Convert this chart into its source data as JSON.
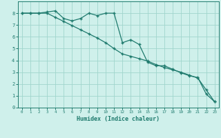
{
  "xlabel": "Humidex (Indice chaleur)",
  "bg_color": "#cff0eb",
  "grid_color": "#a0d5cc",
  "line_color": "#1e7a6d",
  "marker": "+",
  "xlim": [
    -0.5,
    23.5
  ],
  "ylim": [
    0,
    9
  ],
  "xticks": [
    0,
    1,
    2,
    3,
    4,
    5,
    6,
    7,
    8,
    9,
    10,
    11,
    12,
    13,
    14,
    15,
    16,
    17,
    18,
    19,
    20,
    21,
    22,
    23
  ],
  "yticks": [
    0,
    1,
    2,
    3,
    4,
    5,
    6,
    7,
    8
  ],
  "line1_x": [
    0,
    1,
    2,
    3,
    4,
    5,
    6,
    7,
    8,
    9,
    10,
    11,
    12,
    13,
    14,
    15,
    16,
    17,
    18,
    19,
    20,
    21,
    22,
    23
  ],
  "line1_y": [
    8,
    8,
    8,
    8.1,
    8.2,
    7.55,
    7.35,
    7.55,
    8.0,
    7.8,
    8.0,
    8.0,
    5.5,
    5.75,
    5.35,
    3.85,
    3.55,
    3.55,
    3.25,
    2.95,
    2.7,
    2.55,
    1.15,
    0.5
  ],
  "line2_x": [
    0,
    1,
    2,
    3,
    4,
    5,
    6,
    7,
    8,
    9,
    10,
    11,
    12,
    13,
    14,
    15,
    16,
    17,
    18,
    19,
    20,
    21,
    22,
    23
  ],
  "line2_y": [
    8,
    8,
    8,
    8.0,
    7.65,
    7.3,
    6.95,
    6.6,
    6.25,
    5.9,
    5.5,
    5.0,
    4.55,
    4.35,
    4.15,
    3.95,
    3.65,
    3.4,
    3.2,
    3.0,
    2.75,
    2.5,
    1.5,
    0.5
  ]
}
